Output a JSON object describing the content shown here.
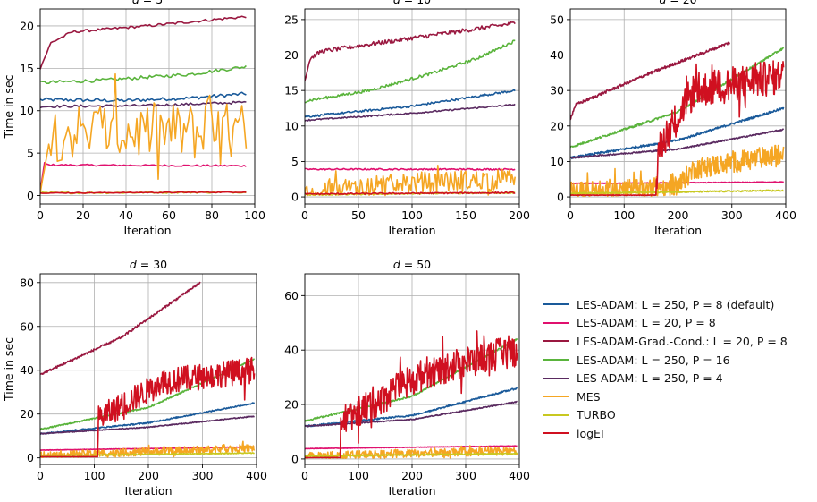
{
  "figure": {
    "ylabel": "Time in sec",
    "xlabel": "Iteration"
  },
  "legend": [
    {
      "name": "LES-ADAM: L = 250, P = 8 (default)",
      "color": "#1a5a9a"
    },
    {
      "name": "LES-ADAM: L = 20, P = 8",
      "color": "#e0106e"
    },
    {
      "name": "LES-ADAM-Grad.-Cond.: L = 20, P = 8",
      "color": "#9a1840"
    },
    {
      "name": "LES-ADAM: L = 250, P = 16",
      "color": "#5ab43c"
    },
    {
      "name": "LES-ADAM: L = 250, P = 4",
      "color": "#5a2a60"
    },
    {
      "name": "MES",
      "color": "#f5a623"
    },
    {
      "name": "TURBO",
      "color": "#c8c820"
    },
    {
      "name": "logEI",
      "color": "#d01020"
    }
  ],
  "chart_data": [
    {
      "type": "line",
      "title": "d = 5",
      "xlabel": "Iteration",
      "ylabel": "Time in sec",
      "xlim": [
        0,
        100
      ],
      "ylim": [
        -1,
        22
      ],
      "xticks": [
        0,
        20,
        40,
        60,
        80,
        100
      ],
      "yticks": [
        0,
        5,
        10,
        15,
        20
      ],
      "grid": true,
      "series": [
        {
          "name": "LES-ADAM: L = 250, P = 8 (default)",
          "n": 96,
          "x": [
            0,
            40,
            70,
            96
          ],
          "y": [
            11.3,
            11.2,
            11.5,
            12.0
          ],
          "noise": 0.2
        },
        {
          "name": "LES-ADAM: L = 20, P = 8",
          "n": 96,
          "x": [
            0,
            2,
            4,
            96
          ],
          "y": [
            0.5,
            3.8,
            3.6,
            3.5
          ],
          "noise": 0.1
        },
        {
          "name": "LES-ADAM-Grad.-Cond.: L = 20, P = 8",
          "n": 96,
          "x": [
            0,
            5,
            15,
            50,
            96
          ],
          "y": [
            15,
            18,
            19.3,
            20,
            21.1
          ],
          "noise": 0.15
        },
        {
          "name": "LES-ADAM: L = 250, P = 16",
          "n": 96,
          "x": [
            0,
            30,
            70,
            96
          ],
          "y": [
            13.3,
            13.6,
            14.3,
            15.2
          ],
          "noise": 0.2
        },
        {
          "name": "LES-ADAM: L = 250, P = 4",
          "n": 96,
          "x": [
            0,
            50,
            96
          ],
          "y": [
            10.5,
            10.6,
            11.0
          ],
          "noise": 0.15
        },
        {
          "name": "MES",
          "n": 96,
          "x": [
            0,
            5,
            96
          ],
          "y": [
            0.3,
            7.5,
            7.5
          ],
          "noise": 3.5
        },
        {
          "name": "TURBO",
          "n": 96,
          "x": [
            0,
            96
          ],
          "y": [
            0.3,
            0.4
          ],
          "noise": 0.1
        },
        {
          "name": "logEI",
          "n": 96,
          "x": [
            0,
            96
          ],
          "y": [
            0.3,
            0.4
          ],
          "noise": 0.05
        }
      ]
    },
    {
      "type": "line",
      "title": "d = 10",
      "xlabel": "Iteration",
      "ylabel": "",
      "xlim": [
        0,
        200
      ],
      "ylim": [
        -1,
        26.5
      ],
      "xticks": [
        0,
        50,
        100,
        150,
        200
      ],
      "yticks": [
        0,
        5,
        10,
        15,
        20,
        25
      ],
      "grid": true,
      "series": [
        {
          "name": "LES-ADAM: L = 250, P = 8 (default)",
          "n": 196,
          "x": [
            0,
            100,
            196
          ],
          "y": [
            11.3,
            12.8,
            15.0
          ],
          "noise": 0.15
        },
        {
          "name": "LES-ADAM: L = 20, P = 8",
          "n": 196,
          "x": [
            0,
            196
          ],
          "y": [
            3.9,
            3.9
          ],
          "noise": 0.1
        },
        {
          "name": "LES-ADAM-Grad.-Cond.: L = 20, P = 8",
          "n": 196,
          "x": [
            0,
            5,
            15,
            60,
            196
          ],
          "y": [
            16.5,
            19.5,
            20.5,
            21.5,
            24.5
          ],
          "noise": 0.3
        },
        {
          "name": "LES-ADAM: L = 250, P = 16",
          "n": 196,
          "x": [
            0,
            60,
            120,
            160,
            196
          ],
          "y": [
            13.5,
            15.0,
            17.5,
            19.5,
            22.0
          ],
          "noise": 0.2
        },
        {
          "name": "LES-ADAM: L = 250, P = 4",
          "n": 196,
          "x": [
            0,
            100,
            196
          ],
          "y": [
            10.8,
            11.8,
            13.0
          ],
          "noise": 0.1
        },
        {
          "name": "MES",
          "n": 196,
          "x": [
            0,
            100,
            196
          ],
          "y": [
            0.5,
            2.0,
            2.5
          ],
          "noise": 1.5
        },
        {
          "name": "TURBO",
          "n": 196,
          "x": [
            0,
            196
          ],
          "y": [
            0.3,
            0.6
          ],
          "noise": 0.1
        },
        {
          "name": "logEI",
          "n": 196,
          "x": [
            0,
            196
          ],
          "y": [
            0.4,
            0.6
          ],
          "noise": 0.1
        }
      ]
    },
    {
      "type": "line",
      "title": "d = 20",
      "xlabel": "Iteration",
      "ylabel": "",
      "xlim": [
        0,
        400
      ],
      "ylim": [
        -2,
        53
      ],
      "xticks": [
        0,
        100,
        200,
        300,
        400
      ],
      "yticks": [
        0,
        10,
        20,
        30,
        40,
        50
      ],
      "grid": true,
      "series": [
        {
          "name": "LES-ADAM: L = 250, P = 8 (default)",
          "n": 396,
          "x": [
            0,
            200,
            396
          ],
          "y": [
            11,
            16,
            25
          ],
          "noise": 0.3
        },
        {
          "name": "LES-ADAM: L = 20, P = 8",
          "n": 396,
          "x": [
            0,
            396
          ],
          "y": [
            3.8,
            4.2
          ],
          "noise": 0.1
        },
        {
          "name": "LES-ADAM-Grad.-Cond.: L = 20, P = 8",
          "n": 296,
          "x": [
            0,
            10,
            150,
            296
          ],
          "y": [
            22,
            26,
            35,
            43.5
          ],
          "noise": 0.4
        },
        {
          "name": "LES-ADAM: L = 250, P = 16",
          "n": 396,
          "x": [
            0,
            200,
            396
          ],
          "y": [
            14,
            24,
            42
          ],
          "noise": 0.3
        },
        {
          "name": "LES-ADAM: L = 250, P = 4",
          "n": 396,
          "x": [
            0,
            200,
            396
          ],
          "y": [
            11,
            13.5,
            19
          ],
          "noise": 0.2
        },
        {
          "name": "MES",
          "n": 396,
          "x": [
            0,
            200,
            230,
            396
          ],
          "y": [
            1.5,
            3.0,
            8,
            12
          ],
          "noise": 3
        },
        {
          "name": "TURBO",
          "n": 396,
          "x": [
            0,
            396
          ],
          "y": [
            1.0,
            1.8
          ],
          "noise": 0.2
        },
        {
          "name": "logEI",
          "n": 396,
          "x": [
            0,
            160,
            164,
            230,
            396
          ],
          "y": [
            0.5,
            0.5,
            14,
            30,
            34
          ],
          "noise": 5
        }
      ]
    },
    {
      "type": "line",
      "title": "d = 30",
      "xlabel": "Iteration",
      "ylabel": "Time in sec",
      "xlim": [
        0,
        400
      ],
      "ylim": [
        -3,
        84
      ],
      "xticks": [
        0,
        100,
        200,
        300,
        400
      ],
      "yticks": [
        0,
        20,
        40,
        60,
        80
      ],
      "grid": true,
      "series": [
        {
          "name": "LES-ADAM: L = 250, P = 8 (default)",
          "n": 396,
          "x": [
            0,
            200,
            396
          ],
          "y": [
            11,
            16,
            25
          ],
          "noise": 0.3
        },
        {
          "name": "LES-ADAM: L = 20, P = 8",
          "n": 396,
          "x": [
            0,
            396
          ],
          "y": [
            3.5,
            5.0
          ],
          "noise": 0.1
        },
        {
          "name": "LES-ADAM-Grad.-Cond.: L = 20, P = 8",
          "n": 296,
          "x": [
            0,
            150,
            296
          ],
          "y": [
            38,
            55,
            80
          ],
          "noise": 0.5
        },
        {
          "name": "LES-ADAM: L = 250, P = 16",
          "n": 396,
          "x": [
            0,
            200,
            396
          ],
          "y": [
            13,
            23,
            45
          ],
          "noise": 0.3
        },
        {
          "name": "LES-ADAM: L = 250, P = 4",
          "n": 396,
          "x": [
            0,
            200,
            396
          ],
          "y": [
            11,
            14,
            19
          ],
          "noise": 0.2
        },
        {
          "name": "MES",
          "n": 396,
          "x": [
            0,
            396
          ],
          "y": [
            1.0,
            4.5
          ],
          "noise": 1.8
        },
        {
          "name": "TURBO",
          "n": 396,
          "x": [
            0,
            396
          ],
          "y": [
            1.0,
            2.2
          ],
          "noise": 0.2
        },
        {
          "name": "logEI",
          "n": 396,
          "x": [
            0,
            105,
            108,
            230,
            396
          ],
          "y": [
            0.5,
            0.5,
            18,
            35,
            40
          ],
          "noise": 6
        }
      ]
    },
    {
      "type": "line",
      "title": "d = 50",
      "xlabel": "Iteration",
      "ylabel": "",
      "xlim": [
        0,
        400
      ],
      "ylim": [
        -2,
        68
      ],
      "xticks": [
        0,
        100,
        200,
        300,
        400
      ],
      "yticks": [
        0,
        20,
        40,
        60
      ],
      "grid": true,
      "series": [
        {
          "name": "LES-ADAM: L = 250, P = 8 (default)",
          "n": 396,
          "x": [
            0,
            200,
            396
          ],
          "y": [
            12,
            16,
            26
          ],
          "noise": 0.3
        },
        {
          "name": "LES-ADAM: L = 20, P = 8",
          "n": 396,
          "x": [
            0,
            396
          ],
          "y": [
            3.8,
            4.8
          ],
          "noise": 0.1
        },
        {
          "name": "LES-ADAM: L = 250, P = 16",
          "n": 396,
          "x": [
            0,
            200,
            396
          ],
          "y": [
            14,
            23,
            44
          ],
          "noise": 0.3
        },
        {
          "name": "LES-ADAM: L = 250, P = 4",
          "n": 396,
          "x": [
            0,
            200,
            396
          ],
          "y": [
            12,
            14.5,
            21
          ],
          "noise": 0.2
        },
        {
          "name": "MES",
          "n": 396,
          "x": [
            0,
            396
          ],
          "y": [
            1.0,
            3.0
          ],
          "noise": 1.5
        },
        {
          "name": "TURBO",
          "n": 396,
          "x": [
            0,
            396
          ],
          "y": [
            1.0,
            2.0
          ],
          "noise": 0.2
        },
        {
          "name": "logEI",
          "n": 396,
          "x": [
            0,
            65,
            68,
            230,
            396
          ],
          "y": [
            0.5,
            0.5,
            14,
            32,
            40
          ],
          "noise": 6
        }
      ]
    }
  ]
}
